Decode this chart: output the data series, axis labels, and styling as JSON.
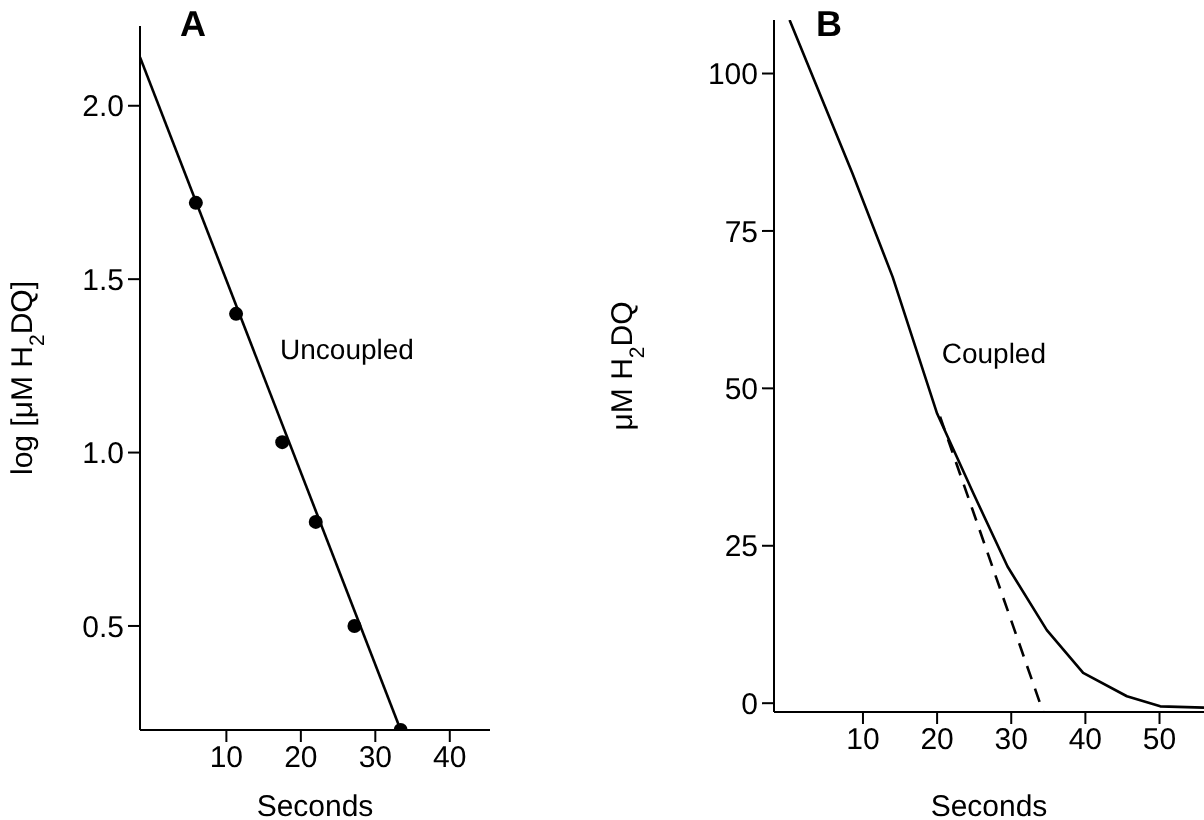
{
  "chart_data": [
    {
      "type": "line",
      "title": "A",
      "xlabel": "Seconds",
      "ylabel": "log [μM H$_{2}$DQ]",
      "xlim": [
        -1.6,
        45.4
      ],
      "ylim": [
        0.2,
        2.23
      ],
      "xticks": [
        10,
        20,
        30,
        40
      ],
      "yticks": [
        0.5,
        {
          "value": 1,
          "label": "1.0"
        },
        1.5,
        {
          "value": 2,
          "label": "2.0"
        }
      ],
      "annotations": [
        {
          "text": "Uncoupled",
          "x": 15.6,
          "y": 1.27
        }
      ],
      "series": [
        {
          "type": "scatter",
          "marker": "circle",
          "color": "#000000",
          "x": [
            5.9,
            11.3,
            17.5,
            22,
            27.2,
            33.4
          ],
          "values": [
            1.72,
            1.4,
            1.03,
            0.8,
            0.5,
            0.2
          ]
        },
        {
          "type": "line",
          "line_style": "solid",
          "color": "#000000",
          "x": [
            -1.6,
            33.4
          ],
          "values": [
            2.14,
            0.2
          ]
        }
      ]
    },
    {
      "type": "line",
      "title": "B",
      "xlabel": "Seconds",
      "ylabel": "μM H$_{2}$DQ",
      "xlim": [
        -2,
        56
      ],
      "ylim": [
        -1.4,
        108.5
      ],
      "xticks": [
        10,
        20,
        30,
        40,
        50
      ],
      "yticks": [
        0,
        25,
        50,
        75,
        100
      ],
      "annotations": [
        {
          "text": "Coupled",
          "x": 19,
          "y": 54
        }
      ],
      "series": [
        {
          "type": "line",
          "line_style": "solid",
          "color": "#000000",
          "x": [
            0.1,
            8.6,
            14,
            20,
            24.9,
            29.5,
            34.8,
            39.7,
            45.6,
            50.1,
            56
          ],
          "values": [
            108.5,
            84.1,
            67.7,
            46,
            33.3,
            21.7,
            11.6,
            4.8,
            1.1,
            -0.5,
            -0.7
          ]
        },
        {
          "type": "line",
          "line_style": "dashed",
          "color": "#000000",
          "x": [
            20.4,
            34.3
          ],
          "values": [
            45.5,
            -1.4
          ]
        }
      ]
    }
  ]
}
